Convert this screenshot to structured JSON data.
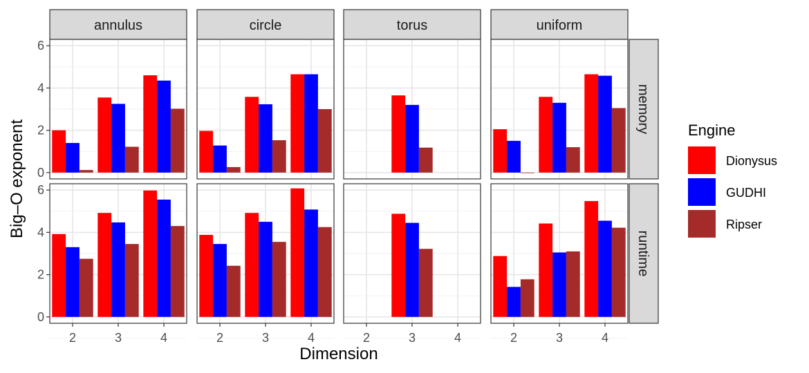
{
  "chart_data": {
    "type": "bar",
    "title": "",
    "xlabel": "Dimension",
    "ylabel": "Big–O exponent",
    "ylim": [
      -0.3,
      6.3
    ],
    "y_ticks": [
      "0",
      "2",
      "4",
      "6"
    ],
    "categories": [
      "2",
      "3",
      "4"
    ],
    "facet_columns": [
      "annulus",
      "circle",
      "torus",
      "uniform"
    ],
    "facet_rows": [
      "memory",
      "runtime"
    ],
    "legend": {
      "title": "Engine",
      "position": "right",
      "entries": [
        {
          "name": "Dionysus",
          "color": "#ff0000"
        },
        {
          "name": "GUDHI",
          "color": "#0000ff"
        },
        {
          "name": "Ripser",
          "color": "#a52a2a"
        }
      ]
    },
    "grid": true,
    "panels": [
      {
        "col": "annulus",
        "row": "memory",
        "series": [
          {
            "name": "Dionysus",
            "values": [
              2.0,
              3.55,
              4.6
            ]
          },
          {
            "name": "GUDHI",
            "values": [
              1.4,
              3.25,
              4.35
            ]
          },
          {
            "name": "Ripser",
            "values": [
              0.12,
              1.22,
              3.02
            ]
          }
        ]
      },
      {
        "col": "circle",
        "row": "memory",
        "series": [
          {
            "name": "Dionysus",
            "values": [
              1.97,
              3.58,
              4.65
            ]
          },
          {
            "name": "GUDHI",
            "values": [
              1.28,
              3.23,
              4.65
            ]
          },
          {
            "name": "Ripser",
            "values": [
              0.26,
              1.53,
              3.0
            ]
          }
        ]
      },
      {
        "col": "torus",
        "row": "memory",
        "series": [
          {
            "name": "Dionysus",
            "values": [
              null,
              3.65,
              null
            ]
          },
          {
            "name": "GUDHI",
            "values": [
              null,
              3.2,
              null
            ]
          },
          {
            "name": "Ripser",
            "values": [
              null,
              1.18,
              null
            ]
          }
        ]
      },
      {
        "col": "uniform",
        "row": "memory",
        "series": [
          {
            "name": "Dionysus",
            "values": [
              2.05,
              3.58,
              4.65
            ]
          },
          {
            "name": "GUDHI",
            "values": [
              1.5,
              3.3,
              4.58
            ]
          },
          {
            "name": "Ripser",
            "values": [
              -0.02,
              1.2,
              3.05
            ]
          }
        ]
      },
      {
        "col": "annulus",
        "row": "runtime",
        "series": [
          {
            "name": "Dionysus",
            "values": [
              3.92,
              4.92,
              5.98
            ]
          },
          {
            "name": "GUDHI",
            "values": [
              3.3,
              4.47,
              5.55
            ]
          },
          {
            "name": "Ripser",
            "values": [
              2.75,
              3.45,
              4.3
            ]
          }
        ]
      },
      {
        "col": "circle",
        "row": "runtime",
        "series": [
          {
            "name": "Dionysus",
            "values": [
              3.88,
              4.92,
              6.08
            ]
          },
          {
            "name": "GUDHI",
            "values": [
              3.45,
              4.5,
              5.08
            ]
          },
          {
            "name": "Ripser",
            "values": [
              2.42,
              3.55,
              4.25
            ]
          }
        ]
      },
      {
        "col": "torus",
        "row": "runtime",
        "series": [
          {
            "name": "Dionysus",
            "values": [
              null,
              4.88,
              null
            ]
          },
          {
            "name": "GUDHI",
            "values": [
              null,
              4.45,
              null
            ]
          },
          {
            "name": "Ripser",
            "values": [
              null,
              3.22,
              null
            ]
          }
        ]
      },
      {
        "col": "uniform",
        "row": "runtime",
        "series": [
          {
            "name": "Dionysus",
            "values": [
              2.88,
              4.42,
              5.48
            ]
          },
          {
            "name": "GUDHI",
            "values": [
              1.42,
              3.05,
              4.55
            ]
          },
          {
            "name": "Ripser",
            "values": [
              1.78,
              3.1,
              4.22
            ]
          }
        ]
      }
    ]
  }
}
